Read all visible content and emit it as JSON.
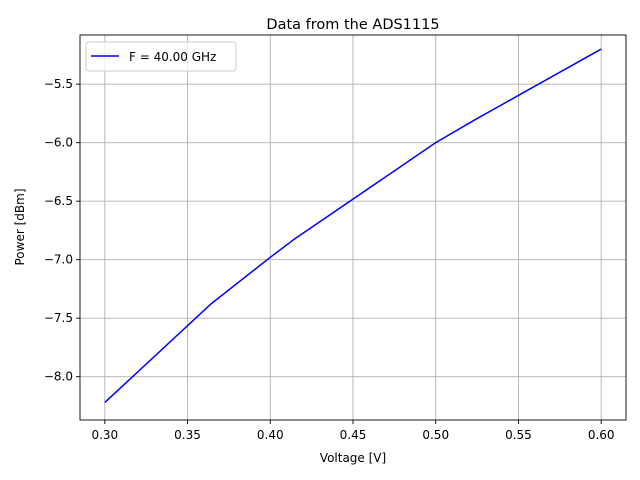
{
  "chart_data": {
    "type": "line",
    "title": "Data from the ADS1115",
    "xlabel": "Voltage [V]",
    "ylabel": "Power [dBm]",
    "xlim": [
      0.285,
      0.615
    ],
    "ylim": [
      -8.37,
      -5.08
    ],
    "xticks": [
      0.3,
      0.35,
      0.4,
      0.45,
      0.5,
      0.55,
      0.6
    ],
    "xtick_labels": [
      "0.30",
      "0.35",
      "0.40",
      "0.45",
      "0.50",
      "0.55",
      "0.60"
    ],
    "yticks": [
      -8.0,
      -7.5,
      -7.0,
      -6.5,
      -6.0,
      -5.5
    ],
    "ytick_labels": [
      "−8.0",
      "−7.5",
      "−7.0",
      "−6.5",
      "−6.0",
      "−5.5"
    ],
    "grid": true,
    "legend_position": "top-left",
    "series": [
      {
        "name": "F = 40.00 GHz",
        "color": "#0000ff",
        "x": [
          0.3,
          0.364,
          0.4,
          0.414,
          0.5,
          0.523,
          0.6
        ],
        "y": [
          -8.22,
          -7.38,
          -6.98,
          -6.83,
          -6.0,
          -5.81,
          -5.2
        ]
      }
    ]
  }
}
